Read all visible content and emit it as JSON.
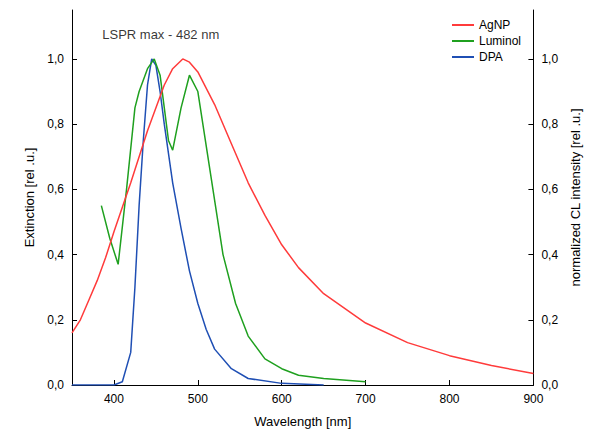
{
  "chart_data": {
    "type": "line",
    "x_label": "Wavelength [nm]",
    "y_label": "Extinction [rel .u.]",
    "y2_label": "normalized CL intensity [rel .u.]",
    "xlim": [
      350,
      900
    ],
    "xticks": [
      400,
      500,
      600,
      700,
      800,
      900
    ],
    "ylim": [
      0,
      1.15
    ],
    "yticks": [
      {
        "value": 0,
        "label": "0,0"
      },
      {
        "value": 0.2,
        "label": "0,2"
      },
      {
        "value": 0.4,
        "label": "0,4"
      },
      {
        "value": 0.6,
        "label": "0,6"
      },
      {
        "value": 0.8,
        "label": "0,8"
      },
      {
        "value": 1.0,
        "label": "1,0"
      }
    ],
    "y2lim": [
      0,
      1.15
    ],
    "y2ticks": [
      {
        "value": 0,
        "label": "0,0"
      },
      {
        "value": 0.2,
        "label": "0,2"
      },
      {
        "value": 0.4,
        "label": "0,4"
      },
      {
        "value": 0.6,
        "label": "0,6"
      },
      {
        "value": 0.8,
        "label": "0,8"
      },
      {
        "value": 1.0,
        "label": "1,0"
      }
    ],
    "grid": false,
    "legend": "upper right",
    "annotations": [
      {
        "text": "LSPR max - 482 nm",
        "x": 482,
        "y": 1.0
      }
    ],
    "series": [
      {
        "name": "AgNP",
        "color": "#ff3b3b",
        "axis": "y",
        "x": [
          350,
          360,
          370,
          380,
          390,
          400,
          420,
          440,
          460,
          470,
          482,
          490,
          500,
          520,
          540,
          560,
          580,
          600,
          620,
          650,
          700,
          750,
          800,
          850,
          900
        ],
        "values": [
          0.16,
          0.2,
          0.26,
          0.32,
          0.39,
          0.47,
          0.62,
          0.78,
          0.92,
          0.97,
          1.0,
          0.99,
          0.96,
          0.86,
          0.74,
          0.62,
          0.52,
          0.43,
          0.36,
          0.28,
          0.19,
          0.13,
          0.09,
          0.06,
          0.035
        ]
      },
      {
        "name": "Luminol",
        "color": "#1fa01f",
        "axis": "y2",
        "x": [
          385,
          395,
          405,
          415,
          425,
          430,
          440,
          448,
          455,
          465,
          470,
          480,
          490,
          500,
          515,
          530,
          545,
          560,
          580,
          600,
          620,
          650,
          700
        ],
        "values": [
          0.55,
          0.45,
          0.37,
          0.6,
          0.85,
          0.9,
          0.97,
          1.0,
          0.95,
          0.75,
          0.72,
          0.85,
          0.95,
          0.9,
          0.65,
          0.4,
          0.25,
          0.15,
          0.08,
          0.05,
          0.03,
          0.02,
          0.01
        ]
      },
      {
        "name": "DPA",
        "color": "#1f4fb4",
        "axis": "y2",
        "x": [
          350,
          400,
          410,
          420,
          425,
          430,
          435,
          440,
          445,
          450,
          455,
          460,
          470,
          480,
          490,
          500,
          510,
          520,
          540,
          560,
          600,
          650
        ],
        "values": [
          0,
          0,
          0.01,
          0.1,
          0.3,
          0.55,
          0.75,
          0.92,
          1.0,
          0.98,
          0.9,
          0.8,
          0.62,
          0.48,
          0.35,
          0.25,
          0.17,
          0.11,
          0.05,
          0.02,
          0.005,
          0
        ]
      }
    ]
  }
}
